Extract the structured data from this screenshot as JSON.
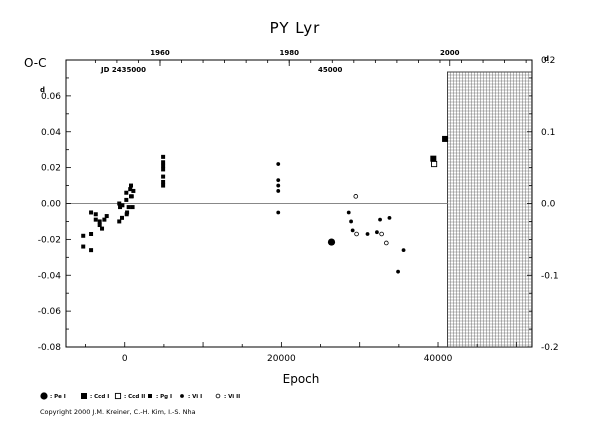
{
  "chart_data": {
    "type": "scatter",
    "title": "PY  Lyr",
    "xlabel": "Epoch",
    "ylabel": "O-C",
    "left_axis_note": "d",
    "right_axis_note": "d",
    "top_axis_note_jd": "JD 2435000",
    "top_axis_note_45000": "45000",
    "x_range": [
      -7500,
      52000
    ],
    "y_range": [
      -0.08,
      0.08
    ],
    "right_y_range": [
      -0.2,
      0.2
    ],
    "x_ticks": [
      {
        "value": 0,
        "label": "0"
      },
      {
        "value": 20000,
        "label": "20000"
      },
      {
        "value": 40000,
        "label": "40000"
      }
    ],
    "y_ticks": [
      {
        "value": 0.06,
        "label": "0.06"
      },
      {
        "value": 0.04,
        "label": "0.04"
      },
      {
        "value": 0.02,
        "label": "0.02"
      },
      {
        "value": 0.0,
        "label": "0.00"
      },
      {
        "value": -0.02,
        "label": "-0.02"
      },
      {
        "value": -0.04,
        "label": "-0.04"
      },
      {
        "value": -0.06,
        "label": "-0.06"
      },
      {
        "value": -0.08,
        "label": "-0.08"
      }
    ],
    "right_y_ticks": [
      {
        "value": 0.2,
        "label": "0.2"
      },
      {
        "value": 0.1,
        "label": "0.1"
      },
      {
        "value": 0.0,
        "label": "0.0"
      },
      {
        "value": -0.1,
        "label": "-0.1"
      },
      {
        "value": -0.2,
        "label": "-0.2"
      }
    ],
    "top_year_ticks": [
      {
        "epoch": 4500,
        "label": "1960"
      },
      {
        "epoch": 21000,
        "label": "1980"
      },
      {
        "epoch": 41500,
        "label": "2000"
      }
    ],
    "zero_line": 0.0,
    "future_region_start": 41200,
    "series": [
      {
        "name": "Pe I",
        "marker": "filled-circle-large",
        "points": [
          [
            26400,
            -0.0215
          ]
        ]
      },
      {
        "name": "Ccd I",
        "marker": "filled-square-large",
        "points": [
          [
            39400,
            0.025
          ],
          [
            40900,
            0.036
          ]
        ]
      },
      {
        "name": "Ccd II",
        "marker": "open-square",
        "points": [
          [
            39500,
            0.022
          ]
        ]
      },
      {
        "name": "Pg I",
        "marker": "filled-square-small",
        "points": [
          [
            -5300,
            -0.018
          ],
          [
            -5300,
            -0.024
          ],
          [
            -4300,
            -0.026
          ],
          [
            -4300,
            -0.017
          ],
          [
            -4300,
            -0.005
          ],
          [
            -3700,
            -0.006
          ],
          [
            -3700,
            -0.009
          ],
          [
            -3200,
            -0.012
          ],
          [
            -3200,
            -0.01
          ],
          [
            -2900,
            -0.014
          ],
          [
            -2600,
            -0.009
          ],
          [
            -2300,
            -0.007
          ],
          [
            -700,
            -0.01
          ],
          [
            -700,
            0.0
          ],
          [
            -600,
            -0.002
          ],
          [
            -350,
            -0.008
          ],
          [
            -300,
            -0.001
          ],
          [
            200,
            0.002
          ],
          [
            200,
            0.006
          ],
          [
            250,
            -0.006
          ],
          [
            300,
            -0.005
          ],
          [
            500,
            -0.002
          ],
          [
            700,
            0.008
          ],
          [
            800,
            0.004
          ],
          [
            800,
            0.01
          ],
          [
            900,
            0.004
          ],
          [
            1000,
            -0.002
          ],
          [
            1100,
            0.007
          ],
          [
            4900,
            0.026
          ],
          [
            4900,
            0.023
          ],
          [
            4900,
            0.021
          ],
          [
            4900,
            0.019
          ],
          [
            4900,
            0.015
          ],
          [
            4900,
            0.012
          ],
          [
            4900,
            0.01
          ]
        ]
      },
      {
        "name": "Vi I",
        "marker": "filled-dot",
        "points": [
          [
            19600,
            0.022
          ],
          [
            19600,
            0.013
          ],
          [
            19600,
            0.01
          ],
          [
            19600,
            0.007
          ],
          [
            19600,
            -0.005
          ],
          [
            28600,
            -0.005
          ],
          [
            28900,
            -0.01
          ],
          [
            29100,
            -0.015
          ],
          [
            31000,
            -0.017
          ],
          [
            32200,
            -0.016
          ],
          [
            32600,
            -0.009
          ],
          [
            33800,
            -0.008
          ],
          [
            34900,
            -0.038
          ],
          [
            35600,
            -0.026
          ]
        ]
      },
      {
        "name": "Vi II",
        "marker": "open-circle",
        "points": [
          [
            29500,
            0.004
          ],
          [
            29600,
            -0.017
          ],
          [
            32800,
            -0.017
          ],
          [
            33400,
            -0.022
          ]
        ]
      }
    ]
  },
  "legend": [
    {
      "label": ": Pe I",
      "marker": "filled-circle-large"
    },
    {
      "label": ": Ccd I",
      "marker": "filled-square-large"
    },
    {
      "label": ": Ccd II",
      "marker": "open-square"
    },
    {
      "label": ": Pg I",
      "marker": "filled-square-small"
    },
    {
      "label": ": Vi I",
      "marker": "filled-dot"
    },
    {
      "label": ": Vi II",
      "marker": "open-circle"
    }
  ],
  "copyright": "Copyright 2000 J.M. Kreiner, C.-H. Kim, I.-S. Nha"
}
